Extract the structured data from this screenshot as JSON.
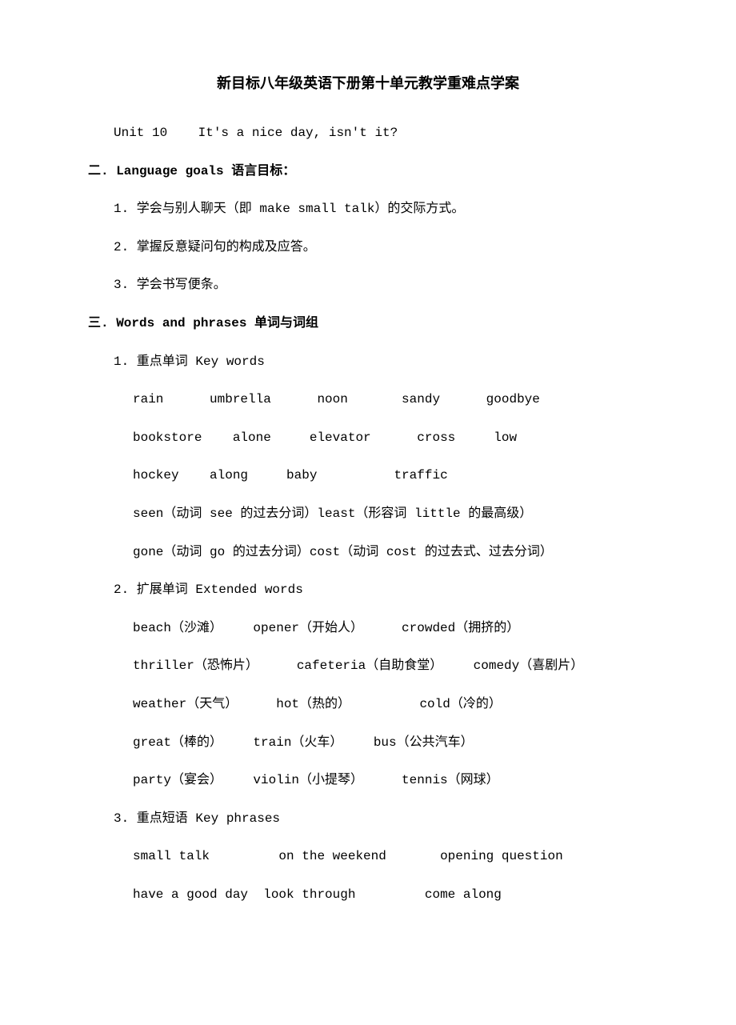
{
  "title": "新目标八年级英语下册第十单元教学重难点学案",
  "unitLine": "Unit 10    It's a nice day, isn't it?",
  "section2": {
    "heading": "二. Language goals 语言目标：",
    "items": [
      "1. 学会与别人聊天（即 make small talk）的交际方式。",
      "2. 掌握反意疑问句的构成及应答。",
      "3. 学会书写便条。"
    ]
  },
  "section3": {
    "heading": "三. Words and phrases 单词与词组",
    "sub1": {
      "heading": "1. 重点单词 Key words",
      "lines": [
        "rain      umbrella      noon       sandy      goodbye",
        "bookstore    alone     elevator      cross     low",
        "hockey    along     baby          traffic",
        "seen（动词 see 的过去分词）least（形容词 little 的最高级）",
        "gone（动词 go 的过去分词）cost（动词 cost 的过去式、过去分词）"
      ]
    },
    "sub2": {
      "heading": "2. 扩展单词 Extended words",
      "lines": [
        "beach（沙滩）    opener（开始人）     crowded（拥挤的）",
        "thriller（恐怖片）     cafeteria（自助食堂）    comedy（喜剧片）",
        "weather（天气）     hot（热的）         cold（冷的）",
        "great（棒的）    train（火车）    bus（公共汽车）",
        "party（宴会）    violin（小提琴）     tennis（网球）"
      ]
    },
    "sub3": {
      "heading": "3. 重点短语 Key phrases",
      "lines": [
        "small talk         on the weekend       opening question",
        "have a good day  look through         come along"
      ]
    }
  }
}
